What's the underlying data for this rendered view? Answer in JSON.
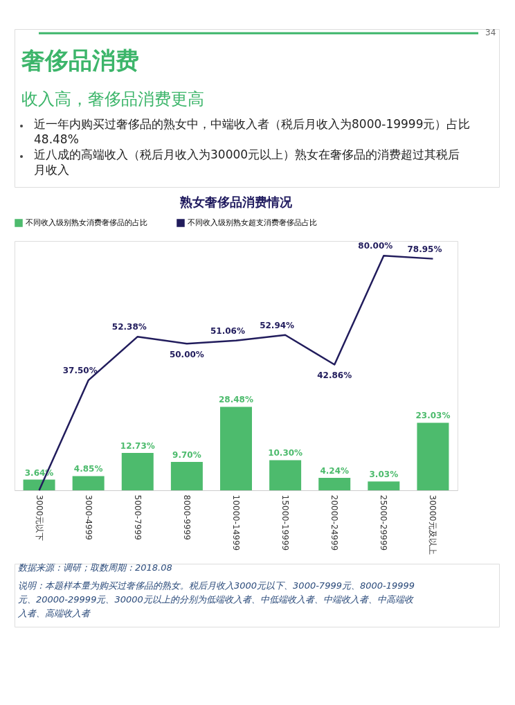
{
  "chart_data": {
    "type": "bar",
    "title": "熟女奢侈品消费情况",
    "categories": [
      "3000元以下",
      "3000-4999",
      "5000-7999",
      "8000-9999",
      "10000-14999",
      "15000-19999",
      "20000-24999",
      "25000-29999",
      "30000元及以上"
    ],
    "series": [
      {
        "name": "不同收入级别熟女消费奢侈品的占比",
        "type": "bar",
        "color": "#4dbb6d",
        "values": [
          3.64,
          4.85,
          12.73,
          9.7,
          28.48,
          10.3,
          4.24,
          3.03,
          23.03
        ],
        "value_labels": [
          "3.64%",
          "4.85%",
          "12.73%",
          "9.70%",
          "28.48%",
          "10.30%",
          "4.24%",
          "3.03%",
          "23.03%"
        ]
      },
      {
        "name": "不同收入级别熟女超支消费奢侈品占比",
        "type": "line",
        "color": "#211c5c",
        "values": [
          0,
          37.5,
          52.38,
          50.0,
          51.06,
          52.94,
          42.86,
          80.0,
          78.95
        ],
        "value_labels": [
          null,
          "37.50%",
          "52.38%",
          "50.00%",
          "51.06%",
          "52.94%",
          "42.86%",
          "80.00%",
          "78.95%"
        ]
      }
    ],
    "ylim": [
      0,
      85
    ],
    "tick_labels": "x",
    "legend": "top",
    "grid": false,
    "marker": "none",
    "annotations": [
      "34",
      "奢侈品消费",
      "收入高，奢侈品消费更高",
      "近一年内购买过奢侈品的熟女中，中端收入者（税后月收入为8000-19999元）占比48.48%",
      "近八成的高端收入（税后月收入为30000元以上）熟女在奢侈品的消费超过其税后月收入",
      "数据来源：调研；取数周期：2018.08",
      "说明：本题样本量为购买过奢侈品的熟女。税后月收入3000元以下、3000-7999元、8000-19999元、20000-29999元、30000元以上的分别为低端收入者、中低端收入者、中端收入者、中高端收入者、高端收入者"
    ]
  }
}
